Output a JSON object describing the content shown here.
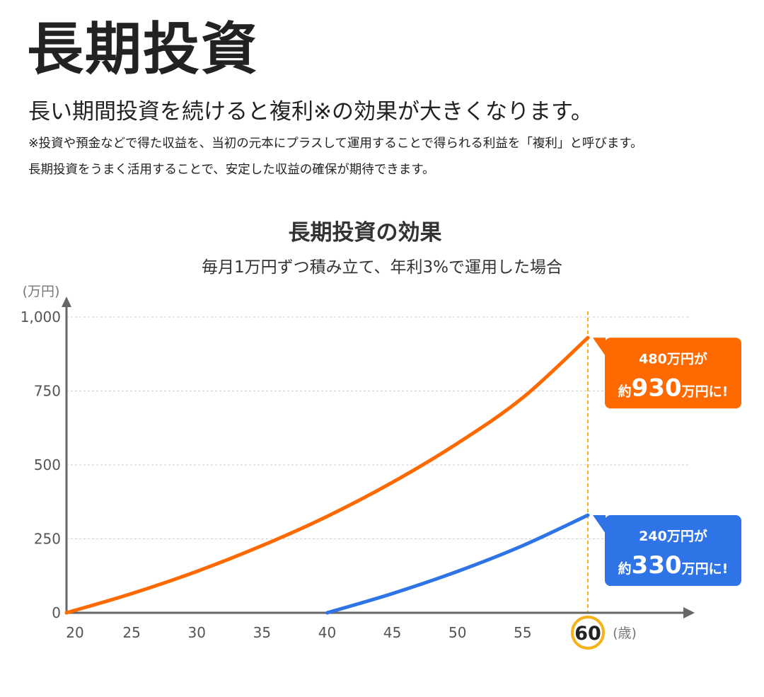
{
  "header": {
    "title": "長期投資",
    "subtitle": "長い期間投資を続けると複利※の効果が大きくなります。",
    "note1": "※投資や預金などで得た収益を、当初の元本にプラスして運用することで得られる利益を「複利」と呼びます。",
    "note2": "長期投資をうまく活用することで、安定した収益の確保が期待できます。"
  },
  "colors": {
    "orange": "#ff6a00",
    "blue": "#2f74e6",
    "axis": "#666666",
    "grid": "#cccccc",
    "highlight": "#f5b21a"
  },
  "chart_data": {
    "type": "line",
    "title": "長期投資の効果",
    "subtitle": "毎月1万円ずつ積み立て、年利3%で運用した場合",
    "ylabel": "(万円)",
    "xlabel": "(歳)",
    "ylim": [
      0,
      1000
    ],
    "xlim": [
      20,
      60
    ],
    "y_ticks": [
      0,
      250,
      500,
      750,
      1000
    ],
    "y_tick_labels": [
      "0",
      "250",
      "500",
      "750",
      "1,000"
    ],
    "x_ticks": [
      20,
      25,
      30,
      35,
      40,
      45,
      50,
      55,
      60
    ],
    "x_tick_labels": [
      "20",
      "25",
      "30",
      "35",
      "40",
      "45",
      "50",
      "55",
      "60"
    ],
    "highlight_x": 60,
    "grid": true,
    "series": [
      {
        "color": "#ff6a00",
        "x": [
          20,
          25,
          30,
          35,
          40,
          45,
          50,
          55,
          60
        ],
        "y": [
          0,
          65,
          140,
          227,
          326,
          441,
          573,
          727,
          930
        ]
      },
      {
        "color": "#2f74e6",
        "x": [
          40,
          45,
          50,
          55,
          60
        ],
        "y": [
          0,
          65,
          140,
          227,
          330
        ]
      }
    ],
    "callouts": [
      {
        "line1": "480万円が",
        "prefix": "約",
        "big": "930",
        "suffix": "万円に!",
        "color": "#ff6a00",
        "anchor_y": 930
      },
      {
        "line1": "240万円が",
        "prefix": "約",
        "big": "330",
        "suffix": "万円に!",
        "color": "#2f74e6",
        "anchor_y": 330
      }
    ]
  }
}
